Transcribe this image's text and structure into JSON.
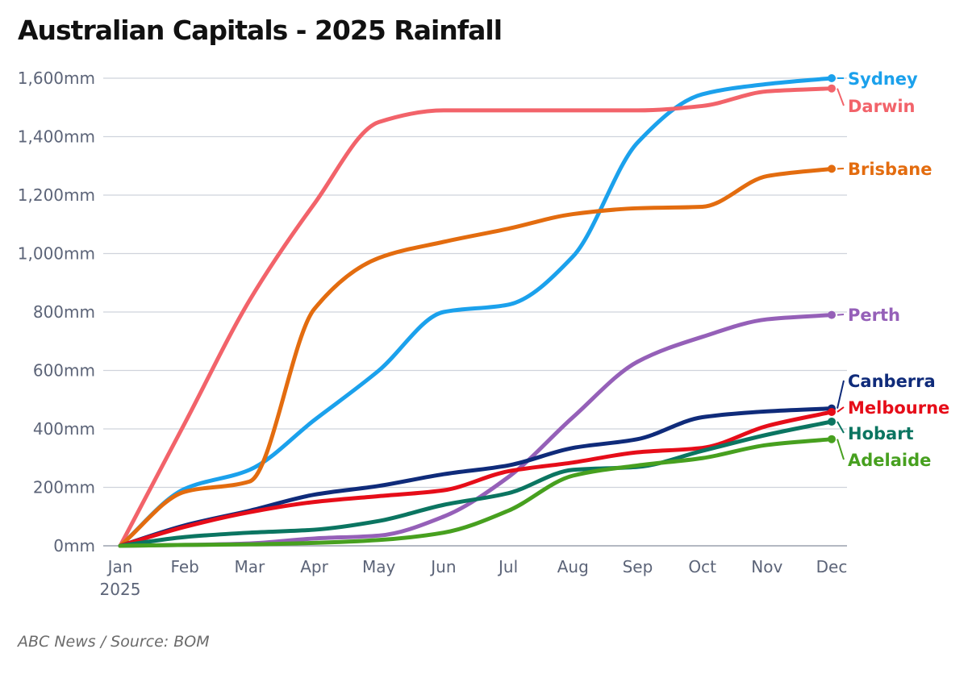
{
  "chart_data": {
    "type": "line",
    "title": "Australian Capitals - 2025 Rainfall",
    "source": "ABC News / Source: BOM",
    "xlabel": "",
    "ylabel": "",
    "x": [
      "Jan\n2025",
      "Feb",
      "Mar",
      "Apr",
      "May",
      "Jun",
      "Jul",
      "Aug",
      "Sep",
      "Oct",
      "Nov",
      "Dec"
    ],
    "ylim": [
      0,
      1600
    ],
    "yticks": [
      0,
      200,
      400,
      600,
      800,
      1000,
      1200,
      1400,
      1600
    ],
    "ytick_labels": [
      "0mm",
      "200mm",
      "400mm",
      "600mm",
      "800mm",
      "1,000mm",
      "1,200mm",
      "1,400mm",
      "1,600mm"
    ],
    "grid": true,
    "legend": "direct labels at line ends (right)",
    "series": [
      {
        "name": "Sydney",
        "color": "#1ba1ec",
        "values": [
          0,
          195,
          260,
          430,
          600,
          800,
          825,
          990,
          1380,
          1545,
          1580,
          1600
        ]
      },
      {
        "name": "Darwin",
        "color": "#f2636a",
        "values": [
          0,
          420,
          840,
          1170,
          1450,
          1490,
          1490,
          1490,
          1490,
          1505,
          1555,
          1565
        ]
      },
      {
        "name": "Brisbane",
        "color": "#e36c0f",
        "values": [
          0,
          185,
          220,
          810,
          985,
          1040,
          1085,
          1135,
          1155,
          1160,
          1265,
          1290
        ]
      },
      {
        "name": "Perth",
        "color": "#9560b8",
        "values": [
          0,
          3,
          8,
          25,
          35,
          100,
          235,
          440,
          630,
          715,
          775,
          790
        ]
      },
      {
        "name": "Canberra",
        "color": "#0f2b7a",
        "values": [
          0,
          70,
          120,
          175,
          205,
          245,
          275,
          335,
          365,
          440,
          460,
          470
        ]
      },
      {
        "name": "Melbourne",
        "color": "#e60d19",
        "values": [
          0,
          65,
          115,
          150,
          170,
          190,
          255,
          285,
          320,
          335,
          410,
          458
        ]
      },
      {
        "name": "Hobart",
        "color": "#0b7561",
        "values": [
          0,
          30,
          45,
          55,
          85,
          140,
          180,
          260,
          270,
          325,
          380,
          425
        ]
      },
      {
        "name": "Adelaide",
        "color": "#47a01f",
        "values": [
          0,
          3,
          5,
          10,
          20,
          45,
          120,
          240,
          275,
          300,
          345,
          365
        ]
      }
    ]
  }
}
